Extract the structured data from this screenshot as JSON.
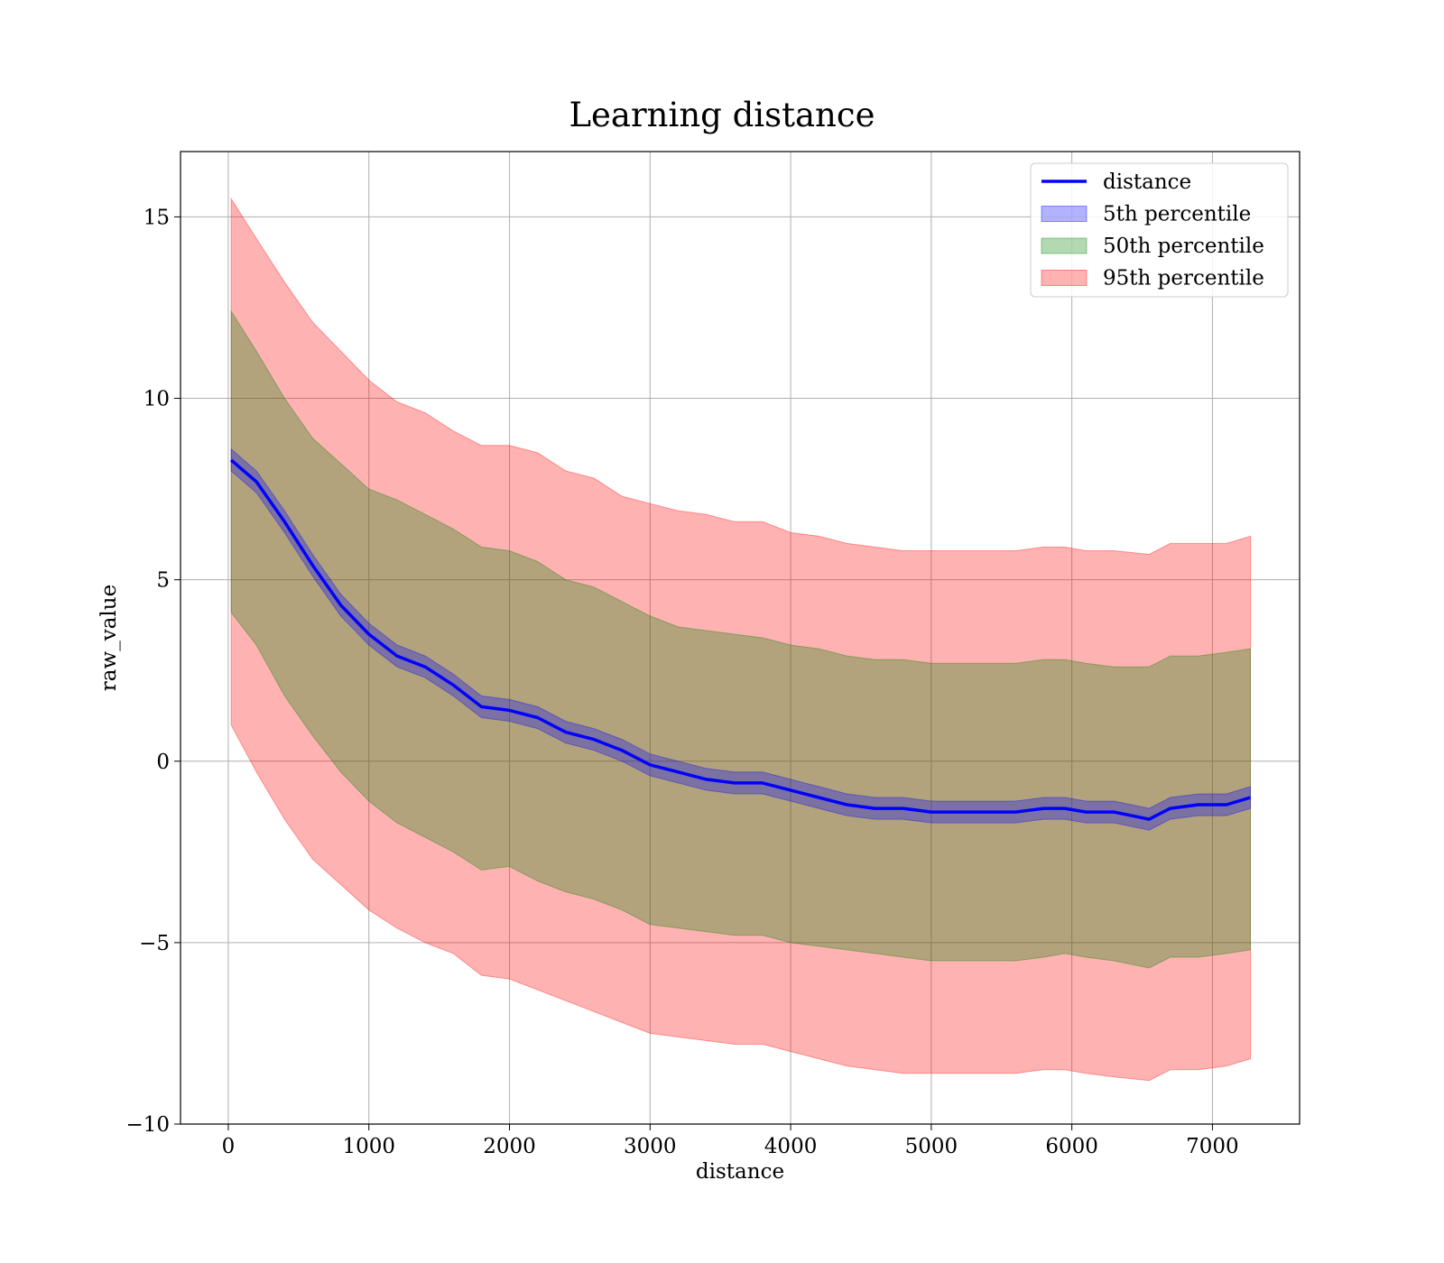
{
  "chart_data": {
    "type": "line",
    "title": "Learning distance",
    "xlabel": "distance",
    "ylabel": "raw_value",
    "xlim": [
      -340,
      7620
    ],
    "ylim": [
      -10,
      16.8
    ],
    "xticks": [
      0,
      1000,
      2000,
      3000,
      4000,
      5000,
      6000,
      7000
    ],
    "yticks": [
      -10,
      -5,
      0,
      5,
      10,
      15
    ],
    "xtick_labels": [
      "0",
      "1000",
      "2000",
      "3000",
      "4000",
      "5000",
      "6000",
      "7000"
    ],
    "ytick_labels": [
      "−10",
      "−5",
      "0",
      "5",
      "10",
      "15"
    ],
    "grid": true,
    "legend_position": "upper right",
    "x": [
      20,
      200,
      400,
      600,
      800,
      1000,
      1200,
      1400,
      1600,
      1800,
      2000,
      2200,
      2400,
      2600,
      2800,
      3000,
      3200,
      3400,
      3600,
      3800,
      4000,
      4200,
      4400,
      4600,
      4800,
      5000,
      5200,
      5400,
      5600,
      5800,
      5950,
      6100,
      6300,
      6550,
      6700,
      6900,
      7100,
      7270
    ],
    "series": [
      {
        "name": "distance",
        "kind": "line",
        "color": "#0000ff",
        "values": [
          8.3,
          7.7,
          6.6,
          5.4,
          4.3,
          3.5,
          2.9,
          2.6,
          2.1,
          1.5,
          1.4,
          1.2,
          0.8,
          0.6,
          0.3,
          -0.1,
          -0.3,
          -0.5,
          -0.6,
          -0.6,
          -0.8,
          -1.0,
          -1.2,
          -1.3,
          -1.3,
          -1.4,
          -1.4,
          -1.4,
          -1.4,
          -1.3,
          -1.3,
          -1.4,
          -1.4,
          -1.6,
          -1.3,
          -1.2,
          -1.2,
          -1.0
        ]
      },
      {
        "name": "5th percentile",
        "kind": "band",
        "color": "#0000ff",
        "lower": [
          8.0,
          7.4,
          6.3,
          5.1,
          4.0,
          3.2,
          2.6,
          2.3,
          1.8,
          1.2,
          1.1,
          0.9,
          0.5,
          0.3,
          0.0,
          -0.4,
          -0.6,
          -0.8,
          -0.9,
          -0.9,
          -1.1,
          -1.3,
          -1.5,
          -1.6,
          -1.6,
          -1.7,
          -1.7,
          -1.7,
          -1.7,
          -1.6,
          -1.6,
          -1.7,
          -1.7,
          -1.9,
          -1.6,
          -1.5,
          -1.5,
          -1.3
        ],
        "upper": [
          8.6,
          8.0,
          6.9,
          5.7,
          4.6,
          3.8,
          3.2,
          2.9,
          2.4,
          1.8,
          1.7,
          1.5,
          1.1,
          0.9,
          0.6,
          0.2,
          0.0,
          -0.2,
          -0.3,
          -0.3,
          -0.5,
          -0.7,
          -0.9,
          -1.0,
          -1.0,
          -1.1,
          -1.1,
          -1.1,
          -1.1,
          -1.0,
          -1.0,
          -1.1,
          -1.1,
          -1.3,
          -1.0,
          -0.9,
          -0.9,
          -0.7
        ]
      },
      {
        "name": "50th percentile",
        "kind": "band",
        "color": "#008000",
        "lower": [
          4.1,
          3.2,
          1.8,
          0.7,
          -0.3,
          -1.1,
          -1.7,
          -2.1,
          -2.5,
          -3.0,
          -2.9,
          -3.3,
          -3.6,
          -3.8,
          -4.1,
          -4.5,
          -4.6,
          -4.7,
          -4.8,
          -4.8,
          -5.0,
          -5.1,
          -5.2,
          -5.3,
          -5.4,
          -5.5,
          -5.5,
          -5.5,
          -5.5,
          -5.4,
          -5.3,
          -5.4,
          -5.5,
          -5.7,
          -5.4,
          -5.4,
          -5.3,
          -5.2
        ],
        "upper": [
          12.4,
          11.3,
          10.0,
          8.9,
          8.2,
          7.5,
          7.2,
          6.8,
          6.4,
          5.9,
          5.8,
          5.5,
          5.0,
          4.8,
          4.4,
          4.0,
          3.7,
          3.6,
          3.5,
          3.4,
          3.2,
          3.1,
          2.9,
          2.8,
          2.8,
          2.7,
          2.7,
          2.7,
          2.7,
          2.8,
          2.8,
          2.7,
          2.6,
          2.6,
          2.9,
          2.9,
          3.0,
          3.1
        ]
      },
      {
        "name": "95th percentile",
        "kind": "band",
        "color": "#ff0000",
        "lower": [
          1.0,
          -0.3,
          -1.6,
          -2.7,
          -3.4,
          -4.1,
          -4.6,
          -5.0,
          -5.3,
          -5.9,
          -6.0,
          -6.3,
          -6.6,
          -6.9,
          -7.2,
          -7.5,
          -7.6,
          -7.7,
          -7.8,
          -7.8,
          -8.0,
          -8.2,
          -8.4,
          -8.5,
          -8.6,
          -8.6,
          -8.6,
          -8.6,
          -8.6,
          -8.5,
          -8.5,
          -8.6,
          -8.7,
          -8.8,
          -8.5,
          -8.5,
          -8.4,
          -8.2
        ],
        "upper": [
          15.5,
          14.4,
          13.2,
          12.1,
          11.3,
          10.5,
          9.9,
          9.6,
          9.1,
          8.7,
          8.7,
          8.5,
          8.0,
          7.8,
          7.3,
          7.1,
          6.9,
          6.8,
          6.6,
          6.6,
          6.3,
          6.2,
          6.0,
          5.9,
          5.8,
          5.8,
          5.8,
          5.8,
          5.8,
          5.9,
          5.9,
          5.8,
          5.8,
          5.7,
          6.0,
          6.0,
          6.0,
          6.2
        ]
      }
    ]
  }
}
